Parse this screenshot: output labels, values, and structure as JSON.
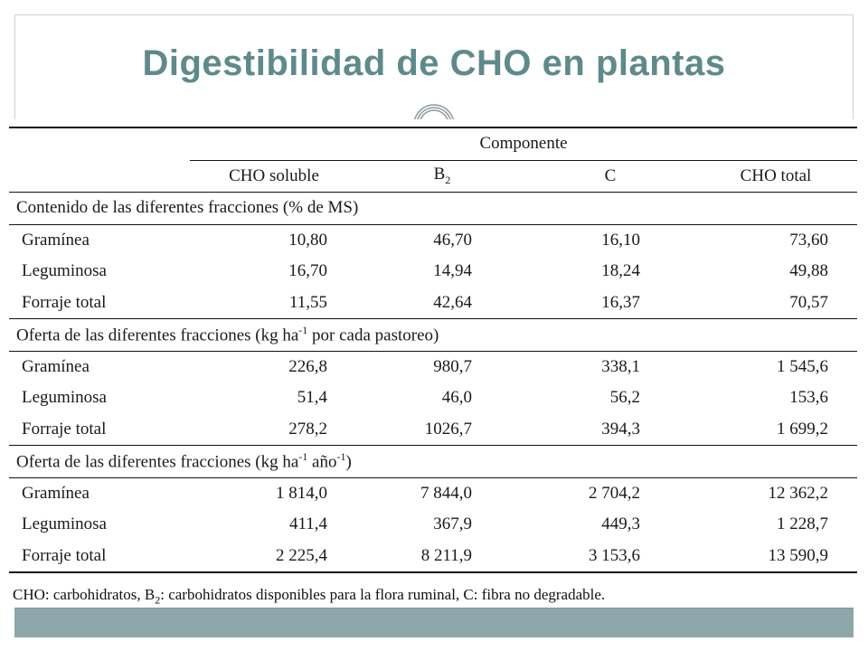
{
  "slide": {
    "title": "Digestibilidad de CHO en plantas"
  },
  "table": {
    "group_header": "Componente",
    "columns": [
      "CHO soluble",
      "B",
      "C",
      "CHO total"
    ],
    "b_subscript": "2",
    "sections": [
      {
        "title_main": "Contenido de las diferentes fracciones (% de MS)",
        "title_sup": "",
        "title_tail": "",
        "rows": [
          {
            "label": "Gramínea",
            "values": [
              "10,80",
              "46,70",
              "16,10",
              "73,60"
            ]
          },
          {
            "label": "Leguminosa",
            "values": [
              "16,70",
              "14,94",
              "18,24",
              "49,88"
            ]
          },
          {
            "label": "Forraje total",
            "values": [
              "11,55",
              "42,64",
              "16,37",
              "70,57"
            ]
          }
        ]
      },
      {
        "title_main": "Oferta de las diferentes fracciones (kg ha",
        "title_sup": "-1",
        "title_tail": " por cada pastoreo)",
        "rows": [
          {
            "label": "Gramínea",
            "values": [
              "226,8",
              "980,7",
              "338,1",
              "1 545,6"
            ]
          },
          {
            "label": "Leguminosa",
            "values": [
              "51,4",
              "46,0",
              "56,2",
              "153,6"
            ]
          },
          {
            "label": "Forraje total",
            "values": [
              "278,2",
              "1026,7",
              "394,3",
              "1 699,2"
            ]
          }
        ]
      },
      {
        "title_main": "Oferta de las diferentes fracciones (kg ha",
        "title_sup": "-1",
        "title_tail": " año",
        "title_sup2": "-1",
        "title_end": ")",
        "rows": [
          {
            "label": "Gramínea",
            "values": [
              "1 814,0",
              "7 844,0",
              "2 704,2",
              "12 362,2"
            ]
          },
          {
            "label": "Leguminosa",
            "values": [
              "411,4",
              "367,9",
              "449,3",
              "1 228,7"
            ]
          },
          {
            "label": "Forraje total",
            "values": [
              "2 225,4",
              "8 211,9",
              "3 153,6",
              "13 590,9"
            ]
          }
        ]
      }
    ]
  },
  "footnote": {
    "part1": "CHO: carbohidratos, B",
    "sub": "2",
    "part2": ": carbohidratos disponibles para la flora ruminal, C: fibra no degradable."
  }
}
